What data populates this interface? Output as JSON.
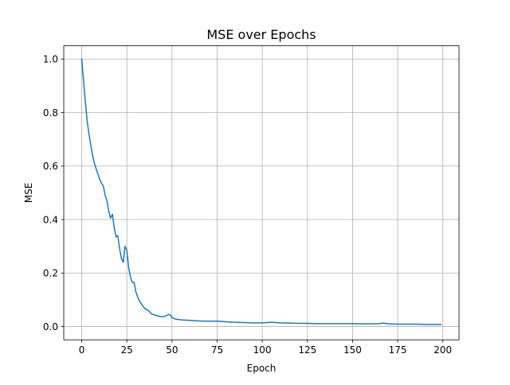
{
  "chart_data": {
    "type": "line",
    "title": "MSE over Epochs",
    "xlabel": "Epoch",
    "ylabel": "MSE",
    "xlim": [
      -9.95,
      208.95
    ],
    "ylim": [
      -0.04955,
      1.04955
    ],
    "xticks": [
      0,
      25,
      50,
      75,
      100,
      125,
      150,
      175,
      200
    ],
    "yticks": [
      0.0,
      0.2,
      0.4,
      0.6,
      0.8,
      1.0
    ],
    "xtick_labels": [
      "0",
      "25",
      "50",
      "75",
      "100",
      "125",
      "150",
      "175",
      "200"
    ],
    "ytick_labels": [
      "0.0",
      "0.2",
      "0.4",
      "0.6",
      "0.8",
      "1.0"
    ],
    "grid": true,
    "legend": "none",
    "series": [
      {
        "color": "#1f77b4",
        "x": [
          0,
          1,
          2,
          3,
          4,
          5,
          6,
          7,
          8,
          9,
          10,
          11,
          12,
          13,
          14,
          15,
          16,
          17,
          18,
          19,
          20,
          21,
          22,
          23,
          24,
          25,
          26,
          27,
          28,
          29,
          30,
          31,
          32,
          33,
          34,
          35,
          36,
          37,
          38,
          39,
          40,
          42,
          44,
          46,
          48,
          49,
          50,
          52,
          55,
          60,
          65,
          70,
          75,
          80,
          85,
          90,
          95,
          100,
          105,
          110,
          115,
          120,
          125,
          130,
          135,
          140,
          145,
          150,
          155,
          160,
          165,
          167,
          170,
          175,
          180,
          185,
          190,
          195,
          199
        ],
        "y": [
          1.0,
          0.92,
          0.84,
          0.77,
          0.72,
          0.68,
          0.64,
          0.61,
          0.59,
          0.57,
          0.55,
          0.535,
          0.525,
          0.49,
          0.47,
          0.43,
          0.405,
          0.42,
          0.37,
          0.335,
          0.34,
          0.29,
          0.255,
          0.24,
          0.3,
          0.285,
          0.22,
          0.185,
          0.165,
          0.165,
          0.13,
          0.11,
          0.095,
          0.085,
          0.075,
          0.068,
          0.063,
          0.06,
          0.052,
          0.046,
          0.044,
          0.04,
          0.037,
          0.038,
          0.045,
          0.044,
          0.033,
          0.028,
          0.025,
          0.023,
          0.021,
          0.02,
          0.02,
          0.018,
          0.016,
          0.015,
          0.014,
          0.014,
          0.016,
          0.014,
          0.013,
          0.012,
          0.012,
          0.011,
          0.011,
          0.011,
          0.011,
          0.011,
          0.01,
          0.01,
          0.011,
          0.013,
          0.01,
          0.009,
          0.009,
          0.009,
          0.008,
          0.008,
          0.008
        ]
      }
    ]
  }
}
